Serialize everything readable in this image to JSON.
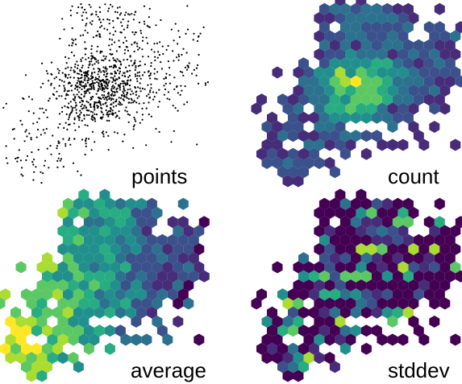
{
  "chart_data": [
    {
      "type": "scatter",
      "label": "points",
      "grid": false,
      "axes_visible": false,
      "point_color": "#000000",
      "description": "scatter of ~1000 random points, dense central cluster"
    },
    {
      "type": "heatmap",
      "label": "count",
      "grid": false,
      "axes_visible": false,
      "colormap": "viridis",
      "shape": "hexagonal bins"
    },
    {
      "type": "heatmap",
      "label": "average",
      "grid": false,
      "axes_visible": false,
      "colormap": "viridis",
      "shape": "hexagonal bins"
    },
    {
      "type": "heatmap",
      "label": "stddev",
      "grid": false,
      "axes_visible": false,
      "colormap": "viridis",
      "shape": "hexagonal bins"
    }
  ],
  "colors": {
    "viridis": [
      "#440154",
      "#472c7a",
      "#3b518b",
      "#2c718e",
      "#21908d",
      "#27ad81",
      "#5cc863",
      "#aadc32",
      "#fde725"
    ],
    "background": "#ffffff"
  }
}
